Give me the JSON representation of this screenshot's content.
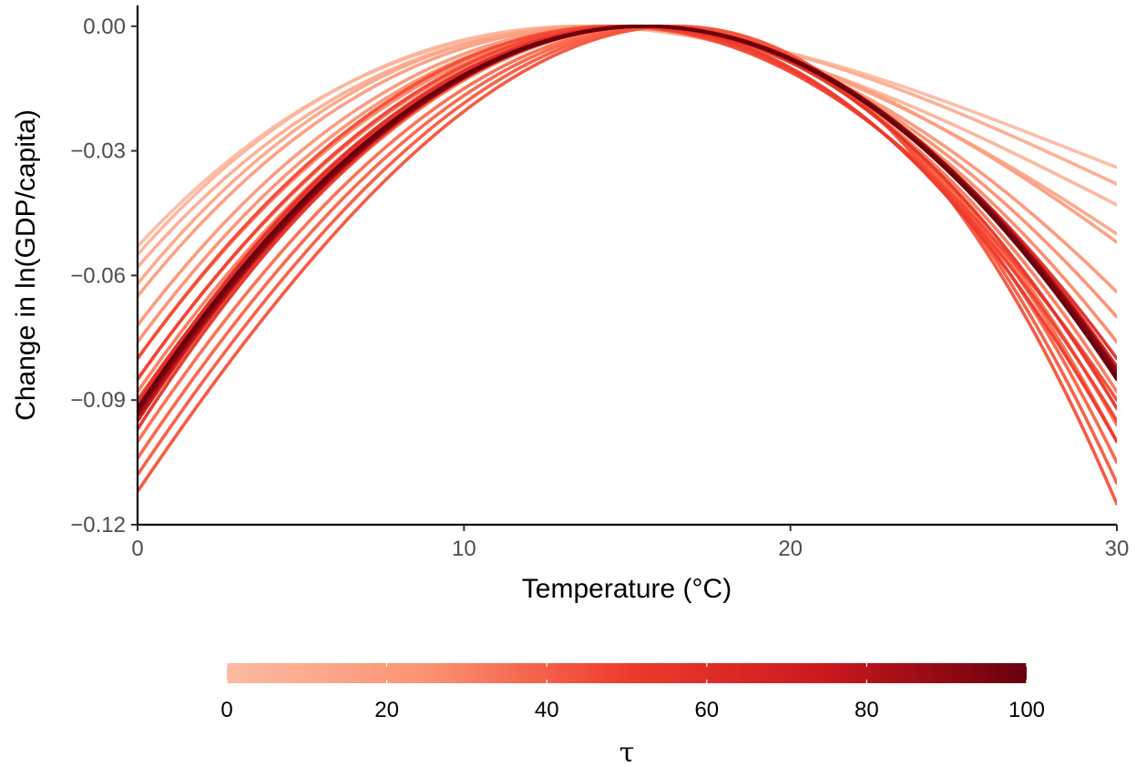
{
  "chart_data": {
    "type": "line",
    "title": "",
    "xlabel": "Temperature (°C)",
    "ylabel": "Change in ln(GDP/capita)",
    "xlim": [
      0,
      30
    ],
    "ylim": [
      -0.12,
      0.005
    ],
    "x_ticks": [
      0,
      10,
      20,
      30
    ],
    "x_tick_labels": [
      "0",
      "10",
      "20",
      "30"
    ],
    "y_ticks": [
      0,
      -0.03,
      -0.06,
      -0.09,
      -0.12
    ],
    "y_tick_labels": [
      "0.00",
      "−0.03",
      "−0.06",
      "−0.09",
      "−0.12"
    ],
    "grid": false,
    "curve_form": "quadratic, each curve peaks at 0 near 15 °C; values given at x = 0 and x = 30",
    "series": [
      {
        "tau": 0,
        "x_peak": 14.0,
        "y_at_0": -0.053,
        "y_at_30": -0.034
      },
      {
        "tau": 3,
        "x_peak": 13.6,
        "y_at_0": -0.055,
        "y_at_30": -0.043
      },
      {
        "tau": 6,
        "x_peak": 14.2,
        "y_at_0": -0.058,
        "y_at_30": -0.038
      },
      {
        "tau": 9,
        "x_peak": 14.0,
        "y_at_0": -0.062,
        "y_at_30": -0.05
      },
      {
        "tau": 12,
        "x_peak": 14.3,
        "y_at_0": -0.065,
        "y_at_30": -0.052
      },
      {
        "tau": 15,
        "x_peak": 14.6,
        "y_at_0": -0.072,
        "y_at_30": -0.064
      },
      {
        "tau": 18,
        "x_peak": 14.8,
        "y_at_0": -0.076,
        "y_at_30": -0.07
      },
      {
        "tau": 21,
        "x_peak": 15.0,
        "y_at_0": -0.08,
        "y_at_30": -0.076
      },
      {
        "tau": 24,
        "x_peak": 15.2,
        "y_at_0": -0.085,
        "y_at_30": -0.082
      },
      {
        "tau": 27,
        "x_peak": 15.3,
        "y_at_0": -0.088,
        "y_at_30": -0.088
      },
      {
        "tau": 30,
        "x_peak": 15.6,
        "y_at_0": -0.095,
        "y_at_30": -0.096
      },
      {
        "tau": 33,
        "x_peak": 15.9,
        "y_at_0": -0.1,
        "y_at_30": -0.1
      },
      {
        "tau": 36,
        "x_peak": 16.1,
        "y_at_0": -0.104,
        "y_at_30": -0.105
      },
      {
        "tau": 39,
        "x_peak": 16.3,
        "y_at_0": -0.108,
        "y_at_30": -0.11
      },
      {
        "tau": 42,
        "x_peak": 16.5,
        "y_at_0": -0.112,
        "y_at_30": -0.115
      },
      {
        "tau": 45,
        "x_peak": 14.6,
        "y_at_0": -0.08,
        "y_at_30": -0.09
      },
      {
        "tau": 48,
        "x_peak": 14.9,
        "y_at_0": -0.085,
        "y_at_30": -0.095
      },
      {
        "tau": 51,
        "x_peak": 15.2,
        "y_at_0": -0.09,
        "y_at_30": -0.1
      },
      {
        "tau": 54,
        "x_peak": 15.5,
        "y_at_0": -0.097,
        "y_at_30": -0.092
      },
      {
        "tau": 57,
        "x_peak": 15.3,
        "y_at_0": -0.091,
        "y_at_30": -0.08
      },
      {
        "tau": 60,
        "x_peak": 15.6,
        "y_at_0": -0.093,
        "y_at_30": -0.083
      },
      {
        "tau": 63,
        "x_peak": 15.5,
        "y_at_0": -0.092,
        "y_at_30": -0.082
      },
      {
        "tau": 66,
        "x_peak": 15.6,
        "y_at_0": -0.095,
        "y_at_30": -0.084
      },
      {
        "tau": 69,
        "x_peak": 15.5,
        "y_at_0": -0.093,
        "y_at_30": -0.083
      },
      {
        "tau": 72,
        "x_peak": 15.6,
        "y_at_0": -0.094,
        "y_at_30": -0.085
      },
      {
        "tau": 75,
        "x_peak": 15.5,
        "y_at_0": -0.092,
        "y_at_30": -0.084
      },
      {
        "tau": 78,
        "x_peak": 15.6,
        "y_at_0": -0.093,
        "y_at_30": -0.083
      },
      {
        "tau": 81,
        "x_peak": 15.6,
        "y_at_0": -0.094,
        "y_at_30": -0.084
      },
      {
        "tau": 84,
        "x_peak": 15.5,
        "y_at_0": -0.092,
        "y_at_30": -0.085
      },
      {
        "tau": 87,
        "x_peak": 15.6,
        "y_at_0": -0.093,
        "y_at_30": -0.084
      },
      {
        "tau": 90,
        "x_peak": 15.5,
        "y_at_0": -0.092,
        "y_at_30": -0.083
      },
      {
        "tau": 93,
        "x_peak": 15.6,
        "y_at_0": -0.093,
        "y_at_30": -0.085
      },
      {
        "tau": 96,
        "x_peak": 15.5,
        "y_at_0": -0.092,
        "y_at_30": -0.084
      },
      {
        "tau": 100,
        "x_peak": 15.5,
        "y_at_0": -0.092,
        "y_at_30": -0.085
      }
    ],
    "legend": {
      "title": "τ",
      "type": "colorbar",
      "position": "bottom",
      "range": [
        0,
        100
      ],
      "ticks": [
        0,
        20,
        40,
        60,
        80,
        100
      ],
      "tick_labels": [
        "0",
        "20",
        "40",
        "60",
        "80",
        "100"
      ],
      "color_low": "#fcbba1",
      "color_mid": "#ef3b2c",
      "color_high": "#67000d"
    }
  }
}
